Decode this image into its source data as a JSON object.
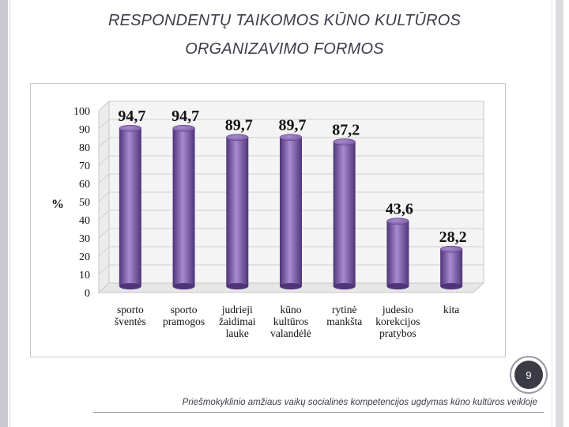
{
  "slide": {
    "title_line1": "RESPONDENTŲ TAIKOMOS KŪNO KULTŪROS",
    "title_line2": "ORGANIZAVIMO FORMOS",
    "page_number": "9",
    "footer": "Priešmokyklinio amžiaus vaikų socialinės kompetencijos ugdymas kūno kultūros veikloje"
  },
  "colors": {
    "bar": "#7b5aa6",
    "bar_light": "#a98ad0",
    "bar_dark": "#4e3578"
  },
  "chart_data": {
    "type": "bar",
    "title": "",
    "xlabel": "",
    "ylabel": "%",
    "ylim": [
      0,
      100
    ],
    "yticks": [
      "0",
      "10",
      "20",
      "30",
      "40",
      "50",
      "60",
      "70",
      "80",
      "90",
      "100"
    ],
    "grid": true,
    "categories": [
      [
        "sporto",
        "šventės"
      ],
      [
        "sporto",
        "pramogos"
      ],
      [
        "judrieji",
        "žaidimai",
        "lauke"
      ],
      [
        "kūno",
        "kultūros",
        "valandėlė"
      ],
      [
        "rytinė",
        "mankšta"
      ],
      [
        "judesio",
        "korekcijos",
        "pratybos"
      ],
      [
        "kita"
      ]
    ],
    "values": [
      94.7,
      94.7,
      89.7,
      89.7,
      87.2,
      43.6,
      28.2
    ],
    "value_labels": [
      "94,7",
      "94,7",
      "89,7",
      "89,7",
      "87,2",
      "43,6",
      "28,2"
    ]
  }
}
